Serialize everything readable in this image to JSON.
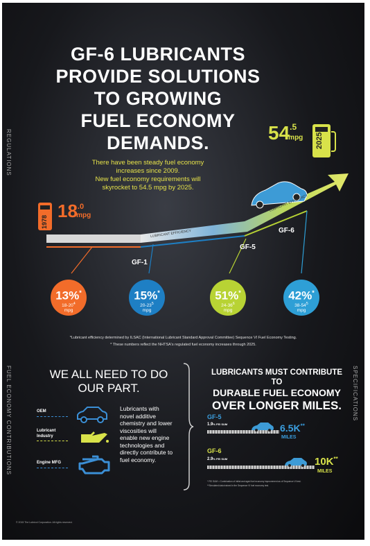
{
  "header": {
    "title_lines": [
      "GF-6 LUBRICANTS",
      "PROVIDE SOLUTIONS",
      "TO GROWING",
      "FUEL ECONOMY",
      "DEMANDS."
    ],
    "subtitle_lines": [
      "There have been steady fuel economy",
      "increases since 2009.",
      "New fuel economy requirements will",
      "skyrocket to 54.5 mpg by 2025."
    ]
  },
  "side_labels": {
    "regulations": "REGULATIONS",
    "fuel_contributions": "FUEL ECONOMY CONTRIBUTIONS",
    "specifications": "SPECIFICATIONS"
  },
  "timeline": {
    "start_year": "1978",
    "start_value": "18",
    "start_decimal": ".0",
    "start_unit": "mpg",
    "end_year": "2025",
    "end_value": "54",
    "end_decimal": ".5",
    "end_unit": "mpg",
    "arrow_label_1": "LUBRICANT EFFICIENCY",
    "arrow_label_2": "LUBRICANT EFFICIENCY",
    "milestones": [
      "GF-1",
      "GF-5",
      "GF-6"
    ]
  },
  "circles": [
    {
      "pct": "13%",
      "star": "*",
      "range": "18-20",
      "range_sup": "4",
      "unit": "mpg",
      "color": "#f26c2a"
    },
    {
      "pct": "15%",
      "star": "*",
      "range": "20-23",
      "range_sup": "5",
      "unit": "mpg",
      "color": "#1e7fc4"
    },
    {
      "pct": "51%",
      "star": "*",
      "range": "24-36",
      "range_sup": "6",
      "unit": "mpg",
      "color": "#b8d334"
    },
    {
      "pct": "42%",
      "star": "*",
      "range": "38-54",
      "range_sup": "5",
      "unit": "mpg",
      "color": "#2e9fd6"
    }
  ],
  "notes": {
    "note1": "*Lubricant efficiency determined by ILSAC (International Lubricant Standard Approval Committee) Sequence VI Fuel Economy Testing.",
    "note2": "* These numbers reflect the NHTSA's regulated fuel economy increases through 2025."
  },
  "contributions": {
    "heading_lines": [
      "WE ALL NEED TO DO",
      "OUR PART."
    ],
    "items": [
      {
        "label": "OEM",
        "icon": "car-icon"
      },
      {
        "label": "Lubricant Industry",
        "icon": "oil-can-icon"
      },
      {
        "label": "Engine MFG",
        "icon": "engine-icon"
      }
    ],
    "body_lines": [
      "Lubricants with",
      "novel additive",
      "chemistry and lower",
      "viscosities will",
      "enable new engine",
      "technologies  and",
      "directly contribute to",
      "fuel economy."
    ]
  },
  "specifications": {
    "heading_lines": [
      "LUBRICANTS MUST CONTRIBUTE TO",
      "DURABLE FUEL ECONOMY",
      "OVER LONGER MILES."
    ],
    "gf5": {
      "label": "GF-5",
      "pct": "1.9",
      "pct_unit": "% FEI SUM",
      "miles": "6.5K",
      "stars": "**",
      "miles_unit": "MILES"
    },
    "gf6": {
      "label": "GF-6",
      "pct": "2.9",
      "pct_unit": "% FEI SUM",
      "miles": "10K",
      "stars": "**",
      "miles_unit": "MILES"
    },
    "footnote1": "* FEI SUM = Combination of initial and aged fuel economy improvement as of Sequence VI test.",
    "footnote2": "**Simulated data trained in the Sequence VI fuel economy test."
  },
  "copyright": "© 2015 The Lubrizol Corporation. All rights reserved."
}
